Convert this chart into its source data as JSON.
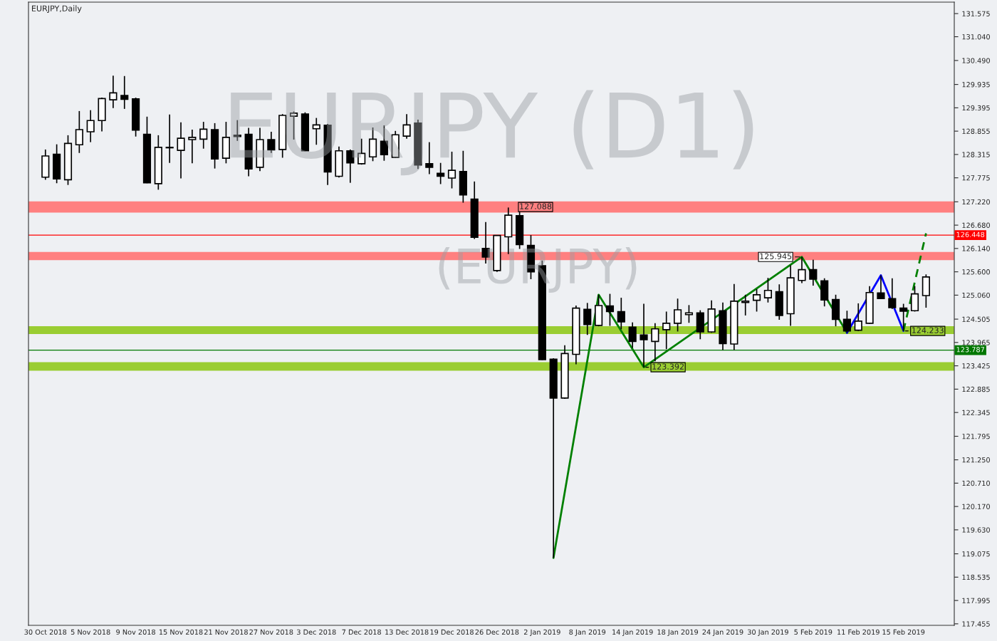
{
  "chart_data": {
    "type": "candlestick",
    "title": "EURJPY,Daily",
    "categories": [
      "30 Oct 2018",
      null,
      null,
      null,
      "5 Nov 2018",
      null,
      null,
      null,
      "9 Nov 2018",
      null,
      null,
      null,
      "15 Nov 2018",
      null,
      null,
      null,
      "21 Nov 2018",
      null,
      null,
      null,
      "27 Nov 2018",
      null,
      null,
      null,
      "3 Dec 2018",
      null,
      null,
      null,
      "7 Dec 2018",
      null,
      null,
      null,
      "13 Dec 2018",
      null,
      null,
      null,
      "19 Dec 2018",
      null,
      null,
      null,
      "26 Dec 2018",
      null,
      null,
      null,
      "2 Jan 2019",
      null,
      null,
      null,
      "8 Jan 2019",
      null,
      null,
      null,
      "14 Jan 2019",
      null,
      null,
      null,
      "18 Jan 2019",
      null,
      null,
      null,
      "24 Jan 2019",
      null,
      null,
      null,
      "30 Jan 2019",
      null,
      null,
      null,
      "5 Feb 2019",
      null,
      null,
      null,
      "11 Feb 2019",
      null,
      null,
      null,
      "15 Feb 2019",
      null,
      null
    ],
    "ohlc": [
      [
        127.79,
        128.43,
        127.73,
        128.28
      ],
      [
        128.32,
        128.55,
        127.65,
        127.75
      ],
      [
        127.73,
        128.76,
        127.61,
        128.57
      ],
      [
        128.54,
        129.32,
        128.35,
        128.89
      ],
      [
        128.84,
        129.34,
        128.6,
        129.1
      ],
      [
        129.1,
        129.63,
        128.85,
        129.61
      ],
      [
        129.58,
        130.14,
        129.39,
        129.74
      ],
      [
        129.68,
        130.13,
        129.37,
        129.59
      ],
      [
        129.6,
        129.63,
        128.73,
        128.88
      ],
      [
        128.78,
        129.19,
        127.65,
        127.66
      ],
      [
        127.64,
        128.76,
        127.5,
        128.48
      ],
      [
        128.48,
        129.24,
        128.12,
        128.47
      ],
      [
        128.41,
        129.06,
        127.76,
        128.69
      ],
      [
        128.66,
        128.89,
        128.11,
        128.71
      ],
      [
        128.67,
        129.07,
        128.45,
        128.9
      ],
      [
        128.89,
        129.04,
        127.99,
        128.21
      ],
      [
        128.23,
        129.07,
        128.11,
        128.71
      ],
      [
        128.76,
        129.11,
        128.63,
        128.73
      ],
      [
        128.78,
        128.93,
        127.81,
        127.98
      ],
      [
        128.02,
        128.93,
        127.93,
        128.66
      ],
      [
        128.66,
        128.84,
        128.35,
        128.42
      ],
      [
        128.43,
        129.25,
        128.24,
        129.22
      ],
      [
        129.2,
        129.31,
        128.66,
        129.27
      ],
      [
        129.25,
        129.29,
        128.39,
        128.4
      ],
      [
        128.91,
        129.16,
        128.54,
        129.0
      ],
      [
        128.99,
        129.02,
        127.61,
        127.91
      ],
      [
        127.81,
        128.5,
        127.78,
        128.4
      ],
      [
        128.4,
        128.43,
        127.66,
        128.12
      ],
      [
        128.1,
        128.68,
        128.08,
        128.34
      ],
      [
        128.26,
        128.94,
        128.16,
        128.67
      ],
      [
        128.62,
        128.99,
        128.17,
        128.31
      ],
      [
        128.25,
        128.86,
        128.24,
        128.77
      ],
      [
        128.74,
        129.25,
        128.68,
        129.0
      ],
      [
        129.04,
        129.12,
        127.98,
        128.07
      ],
      [
        128.1,
        128.6,
        127.86,
        128.02
      ],
      [
        127.88,
        128.12,
        127.63,
        127.81
      ],
      [
        127.77,
        128.38,
        127.53,
        127.95
      ],
      [
        127.92,
        128.4,
        127.2,
        127.38
      ],
      [
        127.28,
        127.69,
        126.36,
        126.4
      ],
      [
        126.14,
        126.75,
        125.79,
        125.94
      ],
      [
        125.63,
        126.44,
        125.6,
        126.44
      ],
      [
        126.41,
        127.088,
        126.01,
        126.91
      ],
      [
        126.9,
        127.02,
        126.13,
        126.23
      ],
      [
        126.21,
        126.45,
        125.43,
        125.6
      ],
      [
        125.74,
        125.86,
        123.56,
        123.57
      ],
      [
        123.58,
        123.6,
        118.98,
        122.68
      ],
      [
        122.68,
        123.9,
        122.66,
        123.71
      ],
      [
        123.69,
        124.82,
        123.46,
        124.76
      ],
      [
        124.73,
        124.88,
        124.14,
        124.38
      ],
      [
        124.36,
        125.07,
        124.34,
        124.82
      ],
      [
        124.81,
        125.09,
        124.35,
        124.68
      ],
      [
        124.68,
        125.0,
        124.27,
        124.44
      ],
      [
        124.32,
        124.43,
        123.84,
        123.99
      ],
      [
        124.14,
        124.86,
        123.392,
        124.03
      ],
      [
        123.99,
        124.41,
        123.53,
        124.28
      ],
      [
        124.26,
        124.68,
        123.81,
        124.41
      ],
      [
        124.41,
        124.98,
        124.22,
        124.72
      ],
      [
        124.61,
        124.83,
        124.42,
        124.65
      ],
      [
        124.65,
        124.71,
        124.04,
        124.21
      ],
      [
        124.21,
        124.94,
        124.19,
        124.74
      ],
      [
        124.7,
        124.89,
        123.79,
        123.94
      ],
      [
        123.93,
        125.32,
        123.79,
        124.92
      ],
      [
        124.89,
        125.07,
        124.59,
        124.92
      ],
      [
        124.94,
        125.2,
        124.68,
        125.07
      ],
      [
        125.0,
        125.46,
        124.89,
        125.17
      ],
      [
        125.14,
        125.31,
        124.49,
        124.59
      ],
      [
        124.63,
        125.75,
        124.35,
        125.46
      ],
      [
        125.4,
        125.945,
        125.34,
        125.65
      ],
      [
        125.65,
        125.88,
        125.28,
        125.43
      ],
      [
        125.39,
        125.45,
        124.8,
        124.95
      ],
      [
        124.96,
        125.07,
        124.34,
        124.5
      ],
      [
        124.5,
        124.7,
        124.19,
        124.23
      ],
      [
        124.25,
        124.87,
        124.23,
        124.46
      ],
      [
        124.41,
        125.27,
        124.4,
        125.12
      ],
      [
        125.11,
        125.52,
        124.97,
        124.98
      ],
      [
        124.98,
        125.45,
        124.74,
        124.77
      ],
      [
        124.76,
        124.86,
        124.233,
        124.69
      ],
      [
        124.7,
        125.27,
        124.68,
        125.09
      ],
      [
        125.05,
        125.54,
        124.77,
        125.48
      ]
    ],
    "series": [
      {
        "type": "line",
        "color": "#008000",
        "line_style": "solid",
        "values": [
          null,
          null,
          null,
          null,
          null,
          null,
          null,
          null,
          null,
          null,
          null,
          null,
          null,
          null,
          null,
          null,
          null,
          null,
          null,
          null,
          null,
          null,
          null,
          null,
          null,
          null,
          null,
          null,
          null,
          null,
          null,
          null,
          null,
          null,
          null,
          null,
          null,
          null,
          null,
          null,
          null,
          null,
          null,
          null,
          null,
          118.98,
          null,
          null,
          null,
          125.07,
          null,
          null,
          null,
          123.392,
          null,
          null,
          null,
          null,
          null,
          null,
          null,
          null,
          null,
          null,
          null,
          null,
          null,
          125.945,
          null,
          null,
          null,
          124.19,
          null,
          null,
          null,
          null,
          null,
          null,
          null
        ]
      },
      {
        "type": "line",
        "color": "#0000ff",
        "line_style": "solid",
        "values": [
          null,
          null,
          null,
          null,
          null,
          null,
          null,
          null,
          null,
          null,
          null,
          null,
          null,
          null,
          null,
          null,
          null,
          null,
          null,
          null,
          null,
          null,
          null,
          null,
          null,
          null,
          null,
          null,
          null,
          null,
          null,
          null,
          null,
          null,
          null,
          null,
          null,
          null,
          null,
          null,
          null,
          null,
          null,
          null,
          null,
          null,
          null,
          null,
          null,
          null,
          null,
          null,
          null,
          null,
          null,
          null,
          null,
          null,
          null,
          null,
          null,
          null,
          null,
          null,
          null,
          null,
          null,
          null,
          null,
          null,
          null,
          124.19,
          null,
          null,
          125.52,
          null,
          124.233,
          null,
          null
        ]
      },
      {
        "type": "line",
        "color": "#008000",
        "line_style": "dashed",
        "values": [
          null,
          null,
          null,
          null,
          null,
          null,
          null,
          null,
          null,
          null,
          null,
          null,
          null,
          null,
          null,
          null,
          null,
          null,
          null,
          null,
          null,
          null,
          null,
          null,
          null,
          null,
          null,
          null,
          null,
          null,
          null,
          null,
          null,
          null,
          null,
          null,
          null,
          null,
          null,
          null,
          null,
          null,
          null,
          null,
          null,
          null,
          null,
          null,
          null,
          null,
          null,
          null,
          null,
          null,
          null,
          null,
          null,
          null,
          null,
          null,
          null,
          null,
          null,
          null,
          null,
          null,
          null,
          null,
          null,
          null,
          null,
          null,
          null,
          null,
          null,
          null,
          124.233,
          null,
          126.49
        ]
      }
    ],
    "ylim": [
      117.42,
      131.84
    ],
    "yticks": [
      {
        "value": 131.575,
        "label": "131.575"
      },
      {
        "value": 131.04,
        "label": "131.040"
      },
      {
        "value": 130.49,
        "label": "130.490"
      },
      {
        "value": 129.935,
        "label": "129.935"
      },
      {
        "value": 129.395,
        "label": "129.395"
      },
      {
        "value": 128.855,
        "label": "128.855"
      },
      {
        "value": 128.315,
        "label": "128.315"
      },
      {
        "value": 127.775,
        "label": "127.775"
      },
      {
        "value": 127.22,
        "label": "127.220"
      },
      {
        "value": 126.68,
        "label": "126.680"
      },
      {
        "value": 126.14,
        "label": "126.140"
      },
      {
        "value": 125.6,
        "label": "125.600"
      },
      {
        "value": 125.06,
        "label": "125.060"
      },
      {
        "value": 124.505,
        "label": "124.505"
      },
      {
        "value": 123.965,
        "label": "123.965"
      },
      {
        "value": 123.425,
        "label": "123.425"
      },
      {
        "value": 122.885,
        "label": "122.885"
      },
      {
        "value": 122.345,
        "label": "122.345"
      },
      {
        "value": 121.795,
        "label": "121.795"
      },
      {
        "value": 121.25,
        "label": "121.250"
      },
      {
        "value": 120.71,
        "label": "120.710"
      },
      {
        "value": 120.17,
        "label": "120.170"
      },
      {
        "value": 119.63,
        "label": "119.630"
      },
      {
        "value": 119.075,
        "label": "119.075"
      },
      {
        "value": 118.535,
        "label": "118.535"
      },
      {
        "value": 117.995,
        "label": "117.995"
      },
      {
        "value": 117.455,
        "label": "117.455"
      }
    ],
    "ref_lines": [
      {
        "axis": "y",
        "value": 126.448,
        "label": "126.448",
        "color": "#ff0000"
      },
      {
        "axis": "y",
        "value": 123.787,
        "label": "123.787",
        "color": "#007700"
      }
    ],
    "bands": [
      {
        "axis": "y",
        "from": 126.97,
        "to": 127.23,
        "color": "#ff8080",
        "label": "127.088"
      },
      {
        "axis": "y",
        "from": 125.87,
        "to": 126.06,
        "color": "#ff8080"
      },
      {
        "axis": "y",
        "from": 124.16,
        "to": 124.34,
        "color": "#9acd32"
      },
      {
        "axis": "y",
        "from": 123.31,
        "to": 123.51,
        "color": "#9acd32"
      }
    ],
    "annotations": [
      "EURJPY (D1)",
      "(EURJPY)",
      {
        "text": "125.945",
        "y": 125.945
      },
      {
        "text": "123.392",
        "y": 123.392
      },
      {
        "text": "124.233",
        "y": 124.233
      }
    ],
    "grid": false
  }
}
